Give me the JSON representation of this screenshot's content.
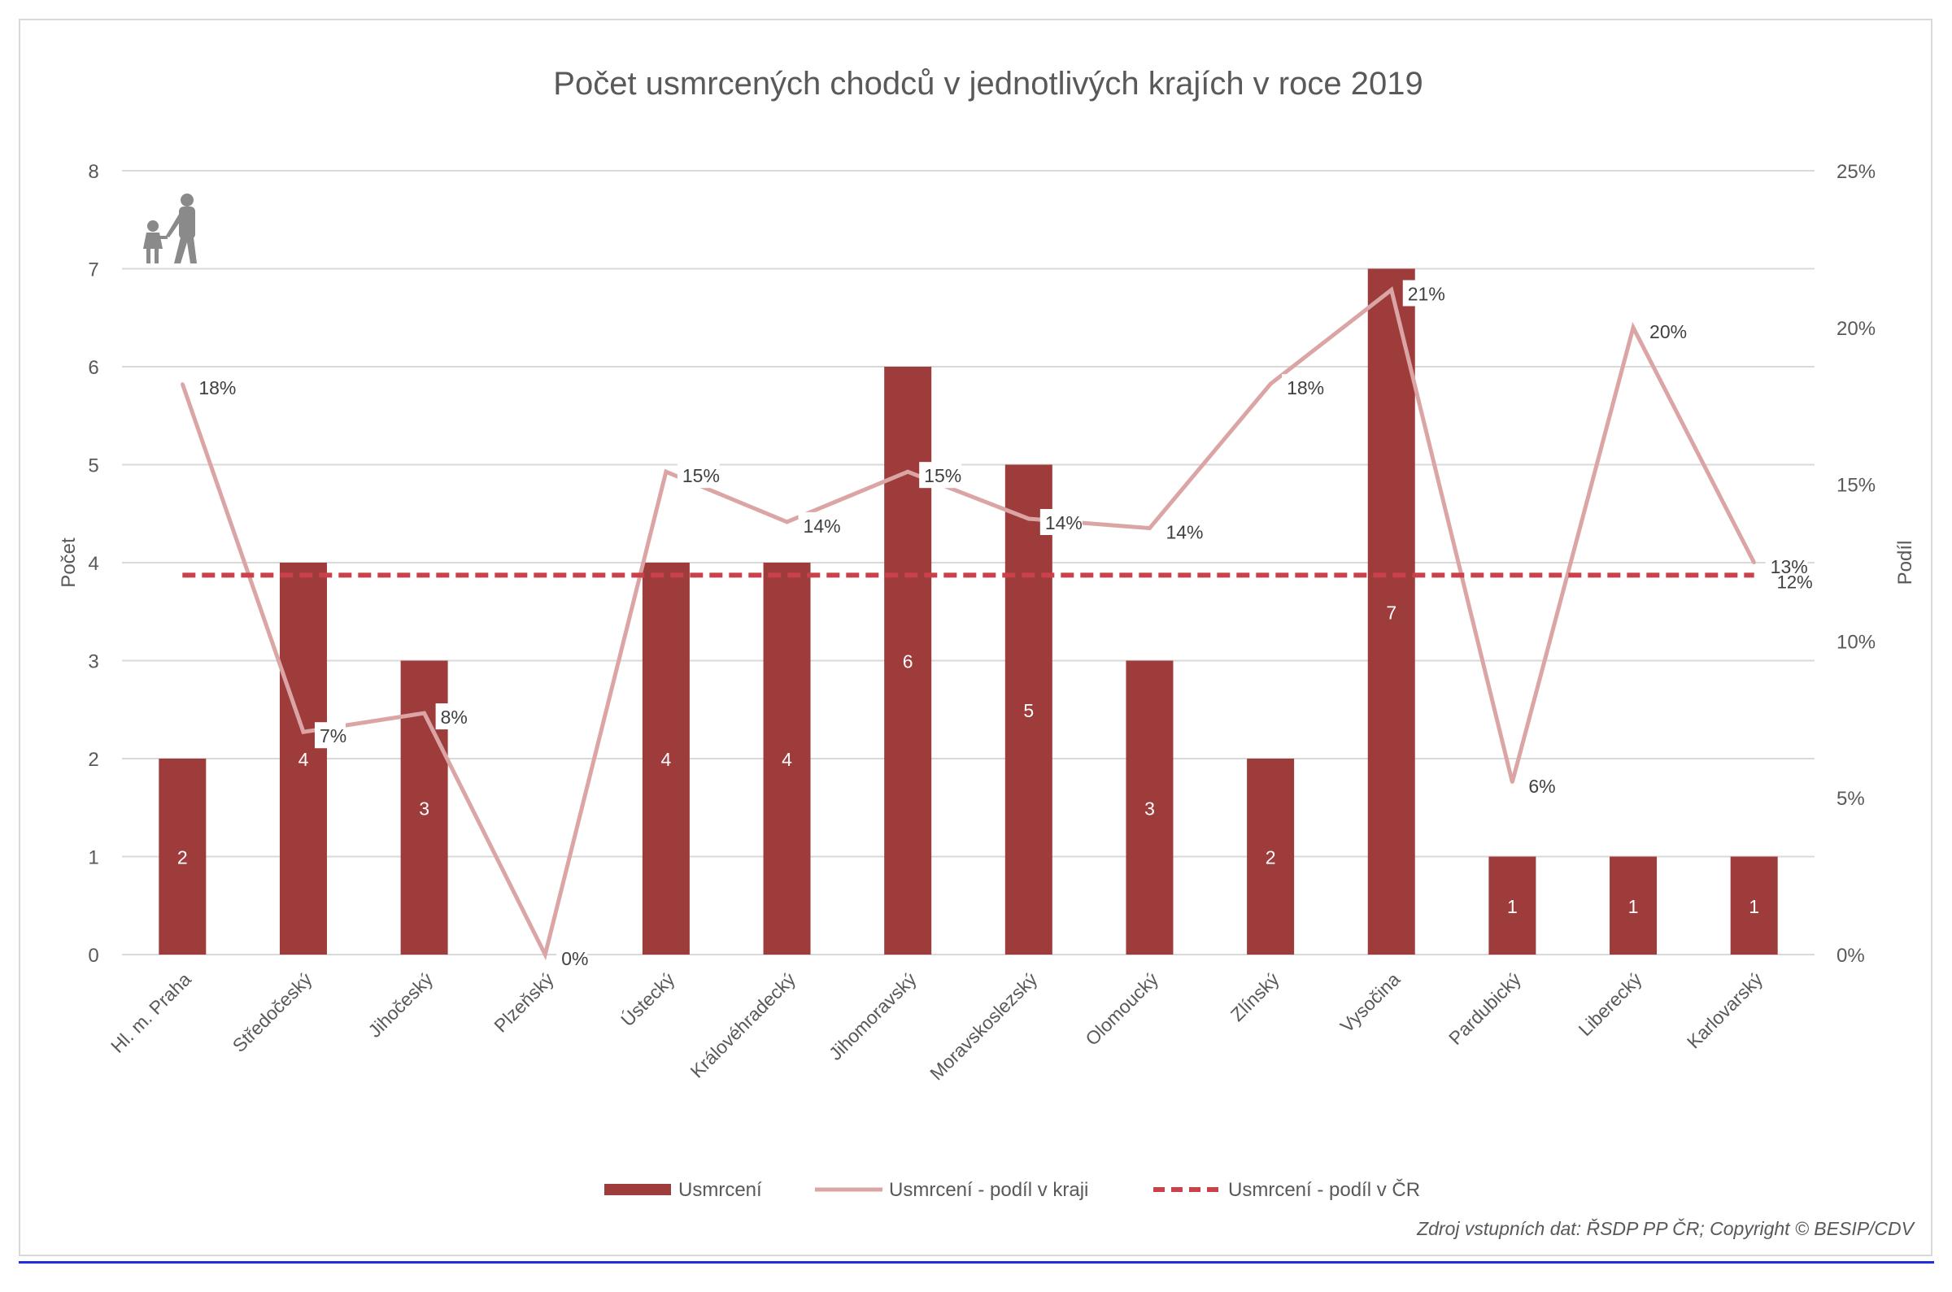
{
  "chart_data": {
    "type": "bar+line",
    "title": "Počet usmrcených chodců v jednotlivých krajích v roce 2019",
    "ylabel": "Počet",
    "y2label": "Podíl",
    "ylim": [
      0,
      8
    ],
    "y2lim": [
      0,
      25
    ],
    "yticks": [
      "0",
      "1",
      "2",
      "3",
      "4",
      "5",
      "6",
      "7",
      "8"
    ],
    "y2ticks": [
      "0%",
      "5%",
      "10%",
      "15%",
      "20%",
      "25%"
    ],
    "grid": true,
    "legend_position": "bottom",
    "categories": [
      "Hl. m. Praha",
      "Středočeský",
      "Jihočeský",
      "Plzeňský",
      "Ústecký",
      "Královéhradecký",
      "Jihomoravský",
      "Moravskoslezský",
      "Olomoucký",
      "Zlínský",
      "Vysočina",
      "Pardubický",
      "Liberecký",
      "Karlovarský"
    ],
    "series": [
      {
        "name": "Usmrcení",
        "type": "bar",
        "axis": "left",
        "color": "#9e3b3b",
        "values": [
          2,
          4,
          3,
          0,
          4,
          4,
          6,
          5,
          3,
          2,
          7,
          1,
          1,
          1
        ],
        "labels": [
          "2",
          "4",
          "3",
          "",
          "4",
          "4",
          "6",
          "5",
          "3",
          "2",
          "7",
          "1",
          "1",
          "1"
        ]
      },
      {
        "name": "Usmrcení - podíl v kraji",
        "type": "line",
        "axis": "right",
        "color": "#dba5a5",
        "values": [
          18.2,
          7.1,
          7.7,
          0,
          15.4,
          13.8,
          15.4,
          13.9,
          13.6,
          18.2,
          21.2,
          5.5,
          20,
          12.5
        ],
        "labels": [
          "18%",
          "7%",
          "8%",
          "0%",
          "15%",
          "14%",
          "15%",
          "14%",
          "14%",
          "18%",
          "21%",
          "6%",
          "20%",
          "13%"
        ]
      },
      {
        "name": "Usmrcení - podíl v ČR",
        "type": "line-dashed",
        "axis": "right",
        "color": "#c9414b",
        "value": 12.1,
        "label": "12%"
      }
    ]
  },
  "source": "Zdroj vstupních dat: ŘSDP PP ČR; Copyright © BESIP/CDV",
  "icons": [
    "pedestrians-icon"
  ]
}
